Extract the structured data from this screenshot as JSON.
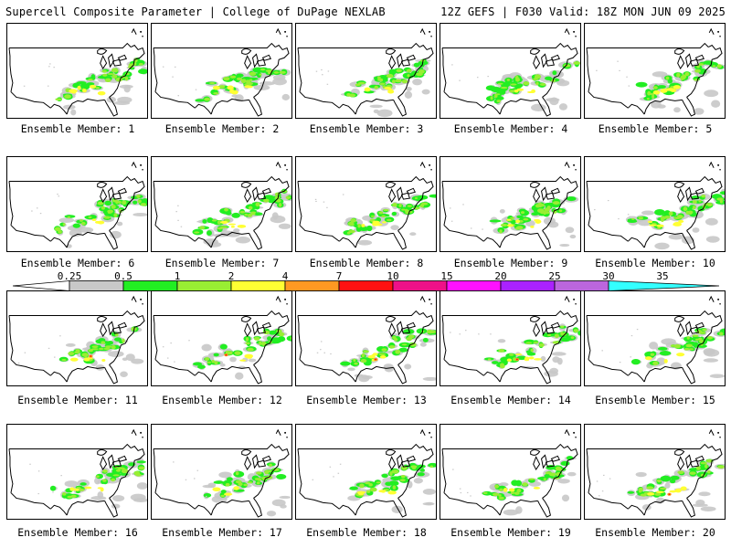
{
  "header": {
    "title": "Supercell Composite Parameter | College of DuPage NEXLAB",
    "run_info": "12Z GEFS | F030 Valid: 18Z MON JUN 09 2025"
  },
  "colorbar": {
    "ticks": [
      "0.25",
      "0.5",
      "1",
      "2",
      "4",
      "7",
      "10",
      "15",
      "20",
      "25",
      "30",
      "35"
    ],
    "colors": [
      "#c8c8c8",
      "#22ee22",
      "#99ee33",
      "#ffff33",
      "#ff9922",
      "#ff1111",
      "#ee1188",
      "#ff11ff",
      "#aa22ff",
      "#bb66dd",
      "#33ffff"
    ],
    "under_color": "#ffffff"
  },
  "panels": [
    {
      "label": "Ensemble Member: 1"
    },
    {
      "label": "Ensemble Member: 2"
    },
    {
      "label": "Ensemble Member: 3"
    },
    {
      "label": "Ensemble Member: 4"
    },
    {
      "label": "Ensemble Member: 5"
    },
    {
      "label": "Ensemble Member: 6"
    },
    {
      "label": "Ensemble Member: 7"
    },
    {
      "label": "Ensemble Member: 8"
    },
    {
      "label": "Ensemble Member: 9"
    },
    {
      "label": "Ensemble Member: 10"
    },
    {
      "label": "Ensemble Member: 11"
    },
    {
      "label": "Ensemble Member: 12"
    },
    {
      "label": "Ensemble Member: 13"
    },
    {
      "label": "Ensemble Member: 14"
    },
    {
      "label": "Ensemble Member: 15"
    },
    {
      "label": "Ensemble Member: 16"
    },
    {
      "label": "Ensemble Member: 17"
    },
    {
      "label": "Ensemble Member: 18"
    },
    {
      "label": "Ensemble Member: 19"
    },
    {
      "label": "Ensemble Member: 20"
    }
  ]
}
